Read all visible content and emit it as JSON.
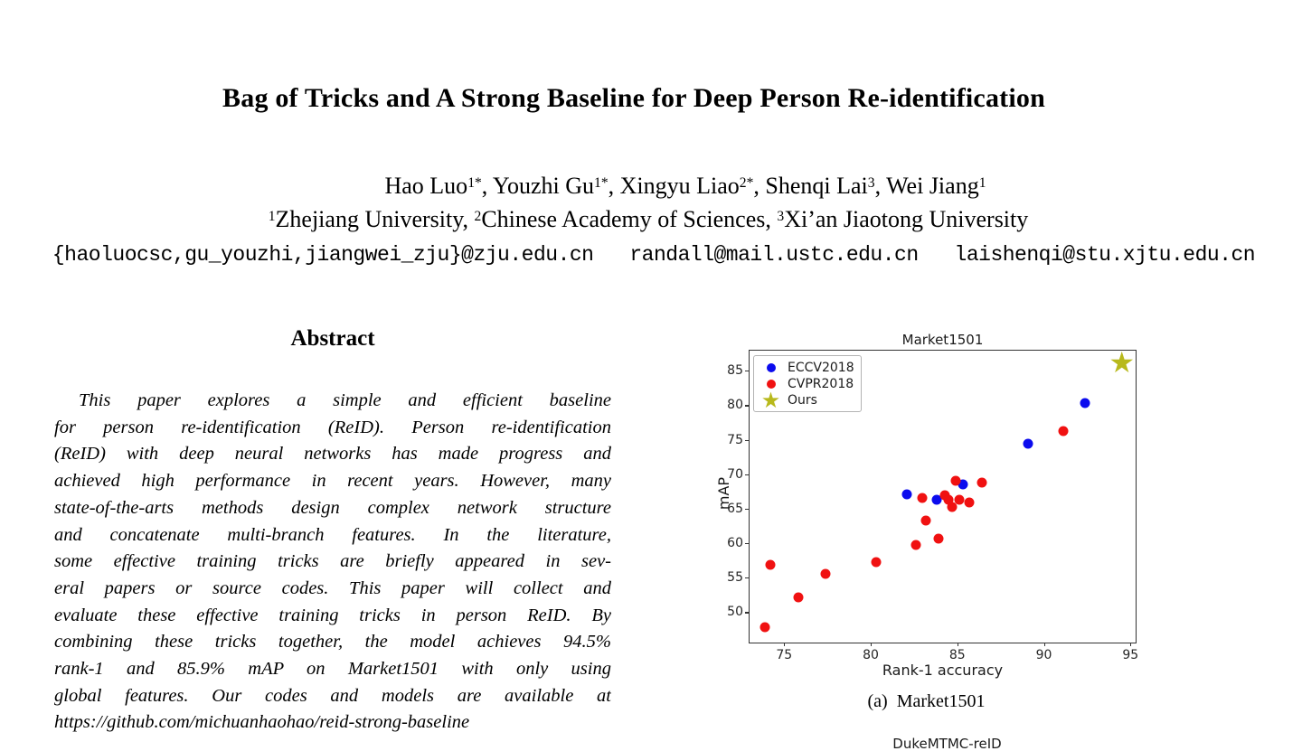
{
  "paper": {
    "title": "Bag of Tricks and A Strong Baseline for Deep Person Re-identification",
    "authors": [
      {
        "name": "Hao Luo",
        "sup": "1*"
      },
      {
        "name": "Youzhi Gu",
        "sup": "1*"
      },
      {
        "name": "Xingyu Liao",
        "sup": "2*"
      },
      {
        "name": "Shenqi Lai",
        "sup": "3"
      },
      {
        "name": "Wei Jiang",
        "sup": "1"
      }
    ],
    "affiliations": [
      {
        "sup": "1",
        "name": "Zhejiang University"
      },
      {
        "sup": "2",
        "name": "Chinese Academy of Sciences"
      },
      {
        "sup": "3",
        "name": "Xi’an Jiaotong University"
      }
    ],
    "emails": "{haoluocsc,gu_youzhi,jiangwei_zju}@zju.edu.cn   randall@mail.ustc.edu.cn   laishenqi@stu.xjtu.edu.cn",
    "abstract": {
      "heading": "Abstract",
      "lines": [
        "This paper explores a simple and efficient baseline",
        "for person re-identification (ReID). Person re-identification",
        "(ReID) with deep neural networks has made progress and",
        "achieved high performance in recent years. However, many",
        "state-of-the-arts methods design complex network structure",
        "and concatenate multi-branch features.  In the literature,",
        "some effective training tricks are briefly appeared in sev-",
        "eral papers or source codes.  This paper will collect and",
        "evaluate these effective training tricks in person ReID. By",
        "combining these tricks together, the model achieves 94.5%",
        "rank-1 and 85.9% mAP on Market1501 with only using",
        "global features.  Our codes and models are available at",
        "https://github.com/michuanhaohao/reid-strong-baseline"
      ]
    }
  },
  "chart_data": {
    "type": "scatter",
    "title": "Market1501",
    "xlabel": "Rank-1 accuracy",
    "ylabel": "mAP",
    "xlim": [
      73.0,
      95.3
    ],
    "ylim": [
      45.6,
      87.9
    ],
    "xticks": [
      75,
      80,
      85,
      90,
      95
    ],
    "yticks": [
      50,
      55,
      60,
      65,
      70,
      75,
      80,
      85
    ],
    "grid": false,
    "legend_position": "upper left",
    "series": [
      {
        "name": "ECCV2018",
        "color": "#0b0bee",
        "marker": "circle",
        "points": [
          [
            82.1,
            67.1
          ],
          [
            83.8,
            66.3
          ],
          [
            85.3,
            68.5
          ],
          [
            89.1,
            74.4
          ],
          [
            92.4,
            80.3
          ]
        ]
      },
      {
        "name": "CVPR2018",
        "color": "#f01111",
        "marker": "circle",
        "points": [
          [
            73.9,
            47.8
          ],
          [
            74.2,
            56.9
          ],
          [
            75.8,
            52.2
          ],
          [
            77.4,
            55.6
          ],
          [
            80.3,
            57.3
          ],
          [
            82.6,
            59.8
          ],
          [
            83.2,
            63.3
          ],
          [
            83.9,
            60.6
          ],
          [
            83.0,
            66.5
          ],
          [
            84.3,
            66.9
          ],
          [
            84.5,
            66.3
          ],
          [
            84.7,
            65.2
          ],
          [
            85.1,
            66.3
          ],
          [
            85.7,
            65.9
          ],
          [
            84.9,
            69.0
          ],
          [
            86.4,
            68.8
          ],
          [
            91.1,
            76.3
          ]
        ]
      },
      {
        "name": "Ours",
        "color": "#b8b91c",
        "marker": "star",
        "points": [
          [
            94.5,
            85.9
          ]
        ]
      }
    ]
  },
  "figure": {
    "caption_prefix": "(a)",
    "caption_text": "Market1501",
    "next_chart_title": "DukeMTMC-reID"
  }
}
